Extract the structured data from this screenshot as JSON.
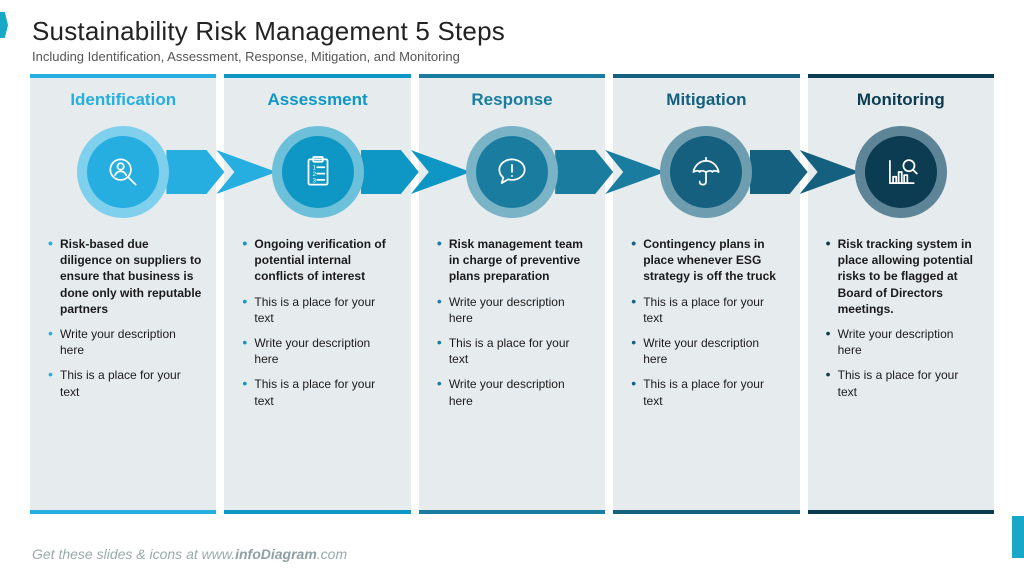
{
  "header": {
    "title": "Sustainability Risk Management 5 Steps",
    "subtitle": "Including Identification, Assessment, Response, Mitigation, and Monitoring"
  },
  "footer": {
    "prefix": "Get these slides & icons at www.",
    "bold": "infoDiagram",
    "suffix": ".com"
  },
  "palette": {
    "col_bg": "#e6ecee",
    "page_bg": "#ffffff"
  },
  "steps": [
    {
      "title": "Identification",
      "color": "#27aee0",
      "halo": "#7fd0ec",
      "icon": "search-person-icon",
      "bullets": [
        {
          "text": "Risk-based due diligence on suppliers to ensure that business is done only with reputable partners",
          "bold": true
        },
        {
          "text": "Write your description here",
          "bold": false
        },
        {
          "text": "This is a place for your text",
          "bold": false
        }
      ]
    },
    {
      "title": "Assessment",
      "color": "#0e97c5",
      "halo": "#6cc0da",
      "icon": "checklist-icon",
      "bullets": [
        {
          "text": "Ongoing verification of potential internal conflicts of interest",
          "bold": true
        },
        {
          "text": "This is a place for your text",
          "bold": false
        },
        {
          "text": "Write your description here",
          "bold": false
        },
        {
          "text": "This is a place for your text",
          "bold": false
        }
      ]
    },
    {
      "title": "Response",
      "color": "#1a7da0",
      "halo": "#7ab3c6",
      "icon": "alert-bubble-icon",
      "bullets": [
        {
          "text": "Risk management team in charge of preventive plans preparation",
          "bold": true
        },
        {
          "text": "Write your description here",
          "bold": false
        },
        {
          "text": "This is a place for your text",
          "bold": false
        },
        {
          "text": "Write your description here",
          "bold": false
        }
      ]
    },
    {
      "title": "Mitigation",
      "color": "#14607e",
      "halo": "#6f9db0",
      "icon": "umbrella-icon",
      "bullets": [
        {
          "text": "Contingency plans in place whenever ESG strategy is off the truck",
          "bold": true
        },
        {
          "text": "This is a place for your text",
          "bold": false
        },
        {
          "text": "Write your description here",
          "bold": false
        },
        {
          "text": "This is a place for your text",
          "bold": false
        }
      ]
    },
    {
      "title": "Monitoring",
      "color": "#0b3c52",
      "halo": "#5d8597",
      "icon": "chart-magnifier-icon",
      "bullets": [
        {
          "text": "Risk tracking system in place allowing potential risks to be flagged at Board of Directors meetings.",
          "bold": true
        },
        {
          "text": "Write your description here",
          "bold": false
        },
        {
          "text": "This is a place for your text",
          "bold": false
        }
      ]
    }
  ]
}
